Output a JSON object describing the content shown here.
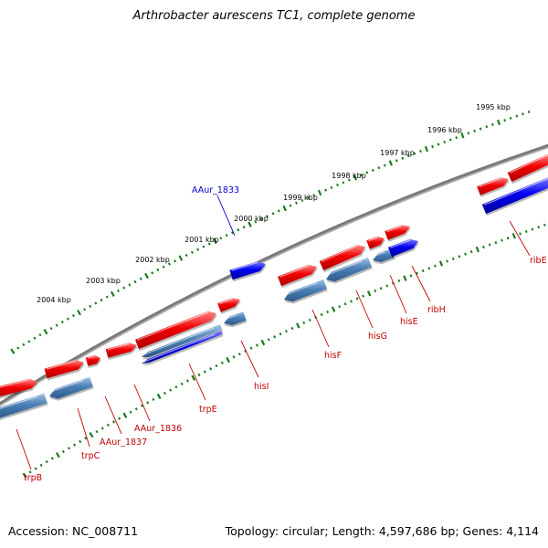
{
  "title": "Arthrobacter aurescens TC1, complete genome",
  "footer": {
    "accession": "Accession: NC_008711",
    "summary": "Topology: circular; Length: 4,597,686 bp; Genes: 4,114"
  },
  "colors": {
    "forward_gene": "#e80000",
    "reverse_gene": "#4a7fb5",
    "highlight_gene": "#0000e0",
    "backbone": "#7a7a7a",
    "ticks": "#1a7a1a",
    "label_forward": "#c00000",
    "label_highlight": "#0000cc"
  },
  "kbp_labels": [
    "1995 kbp",
    "1996 kbp",
    "1997 kbp",
    "1998 kbp",
    "1999 kbp",
    "2000 kbp",
    "2001 kbp",
    "2002 kbp",
    "2003 kbp",
    "2004 kbp"
  ],
  "gene_labels": [
    "AAur_1833",
    "ribE",
    "hisI",
    "hisF",
    "hisG",
    "hisE",
    "ribH",
    "trpE",
    "AAur_1836",
    "AAur_1837",
    "trpC",
    "trpB"
  ]
}
